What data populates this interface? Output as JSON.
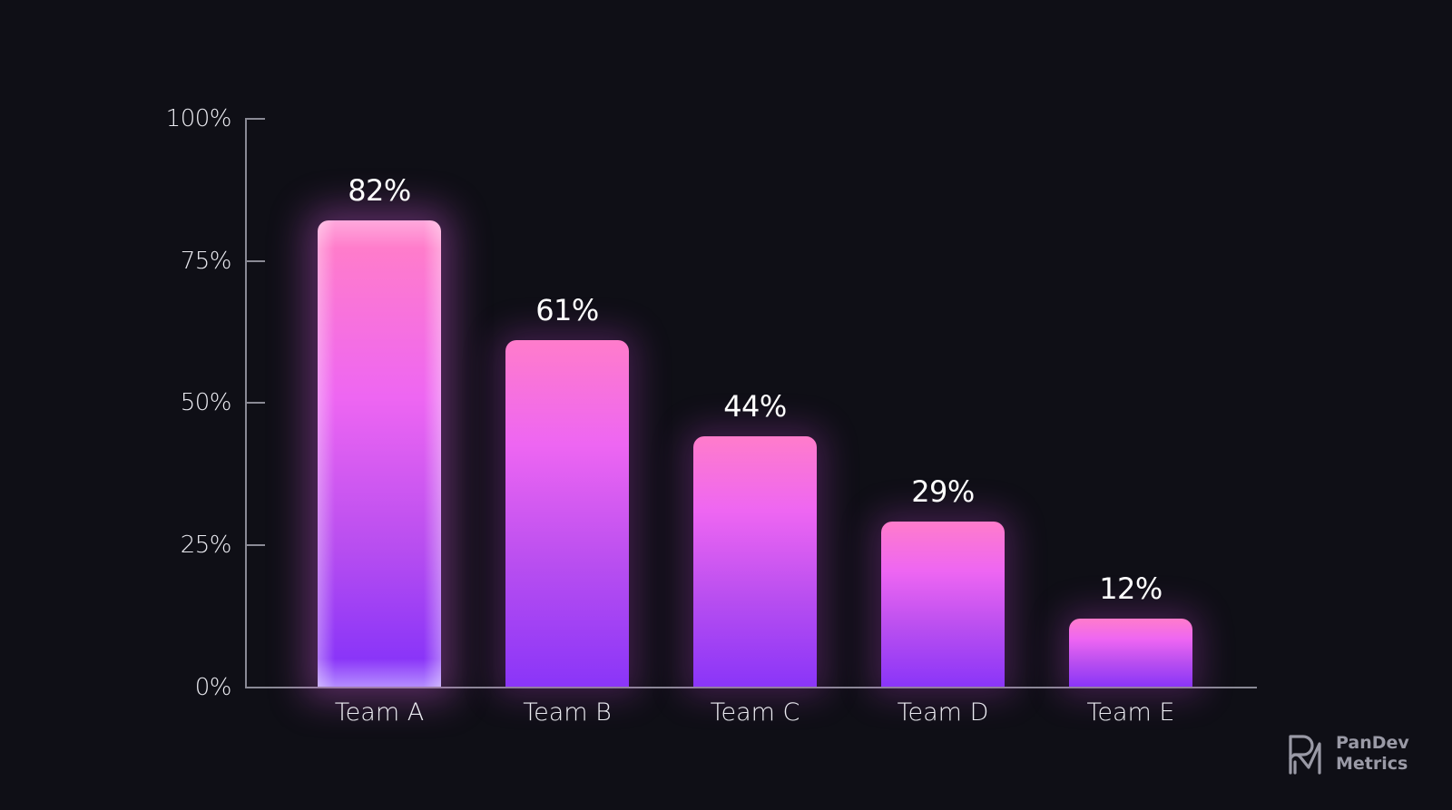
{
  "chart_data": {
    "type": "bar",
    "title": "",
    "xlabel": "",
    "ylabel": "",
    "categories": [
      "Team A",
      "Team B",
      "Team C",
      "Team D",
      "Team E"
    ],
    "values": [
      82,
      61,
      44,
      29,
      12
    ],
    "value_labels": [
      "82%",
      "61%",
      "44%",
      "29%",
      "12%"
    ],
    "ylim": [
      0,
      100
    ],
    "yticks": [
      0,
      25,
      50,
      75,
      100
    ],
    "ytick_labels": [
      "0%",
      "25%",
      "50%",
      "75%",
      "100%"
    ],
    "grid": false,
    "legend": null,
    "highlighted_category": "Team A",
    "colors": {
      "background": "#0f0f16",
      "bar_top": "#ff7ccb",
      "bar_mid": "#ee66f2",
      "bar_bottom": "#8a35f8",
      "axis": "#8a8a95",
      "text": "#ececf2"
    }
  },
  "branding": {
    "logo_icon": "pandev-pm-monogram-icon",
    "line1": "PanDev",
    "line2": "Metrics"
  }
}
